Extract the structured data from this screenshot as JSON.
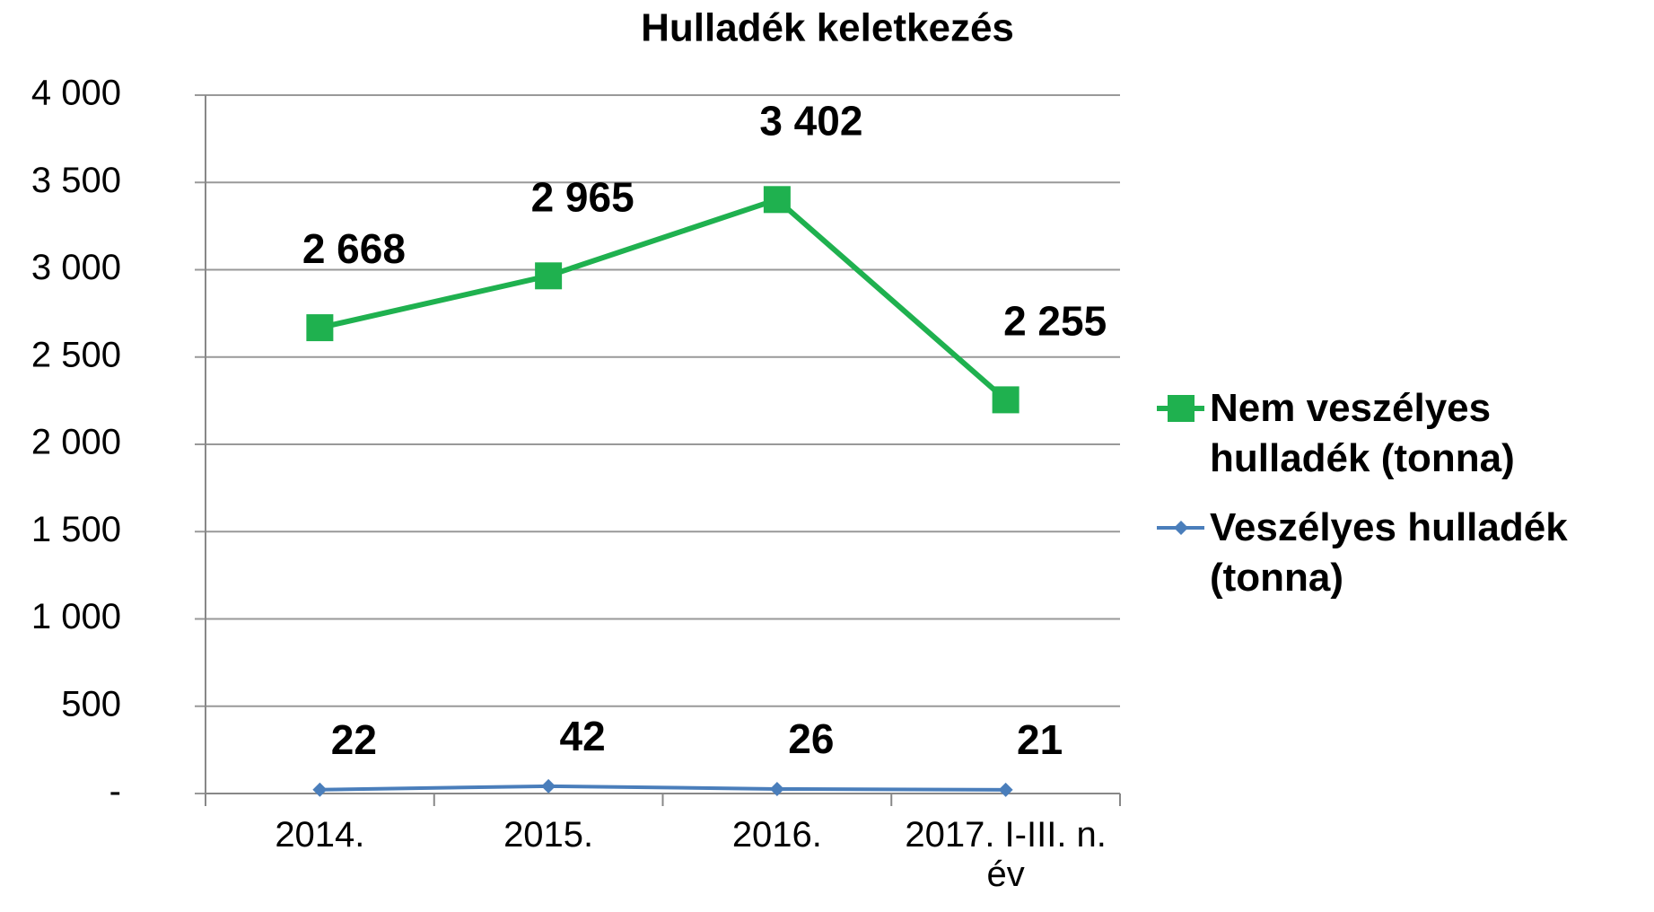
{
  "chart_data": {
    "type": "line",
    "title": "Hulladék keletkezés",
    "categories": [
      "2014.",
      "2015.",
      "2016.",
      "2017. I-III. n. év"
    ],
    "series": [
      {
        "name": "Nem veszélyes hulladék (tonna)",
        "color": "#1fb14f",
        "marker": "square",
        "values": [
          2668,
          2965,
          3402,
          2255
        ],
        "value_labels": [
          "2 668",
          "2 965",
          "3 402",
          "2 255"
        ]
      },
      {
        "name": "Veszélyes hulladék (tonna)",
        "color": "#4a7ebb",
        "marker": "diamond",
        "values": [
          22,
          42,
          26,
          21
        ]
      }
    ],
    "ylim": [
      0,
      4000
    ],
    "yticks": [
      {
        "value": 0,
        "label": "-"
      },
      500,
      {
        "value": 1000,
        "label": "1 000"
      },
      {
        "value": 1500,
        "label": "1 500"
      },
      {
        "value": 2000,
        "label": "2 000"
      },
      {
        "value": 2500,
        "label": "2 500"
      },
      {
        "value": 3000,
        "label": "3 000"
      },
      {
        "value": 3500,
        "label": "3 500"
      },
      {
        "value": 4000,
        "label": "4 000"
      }
    ],
    "grid": true,
    "legend": "right"
  }
}
